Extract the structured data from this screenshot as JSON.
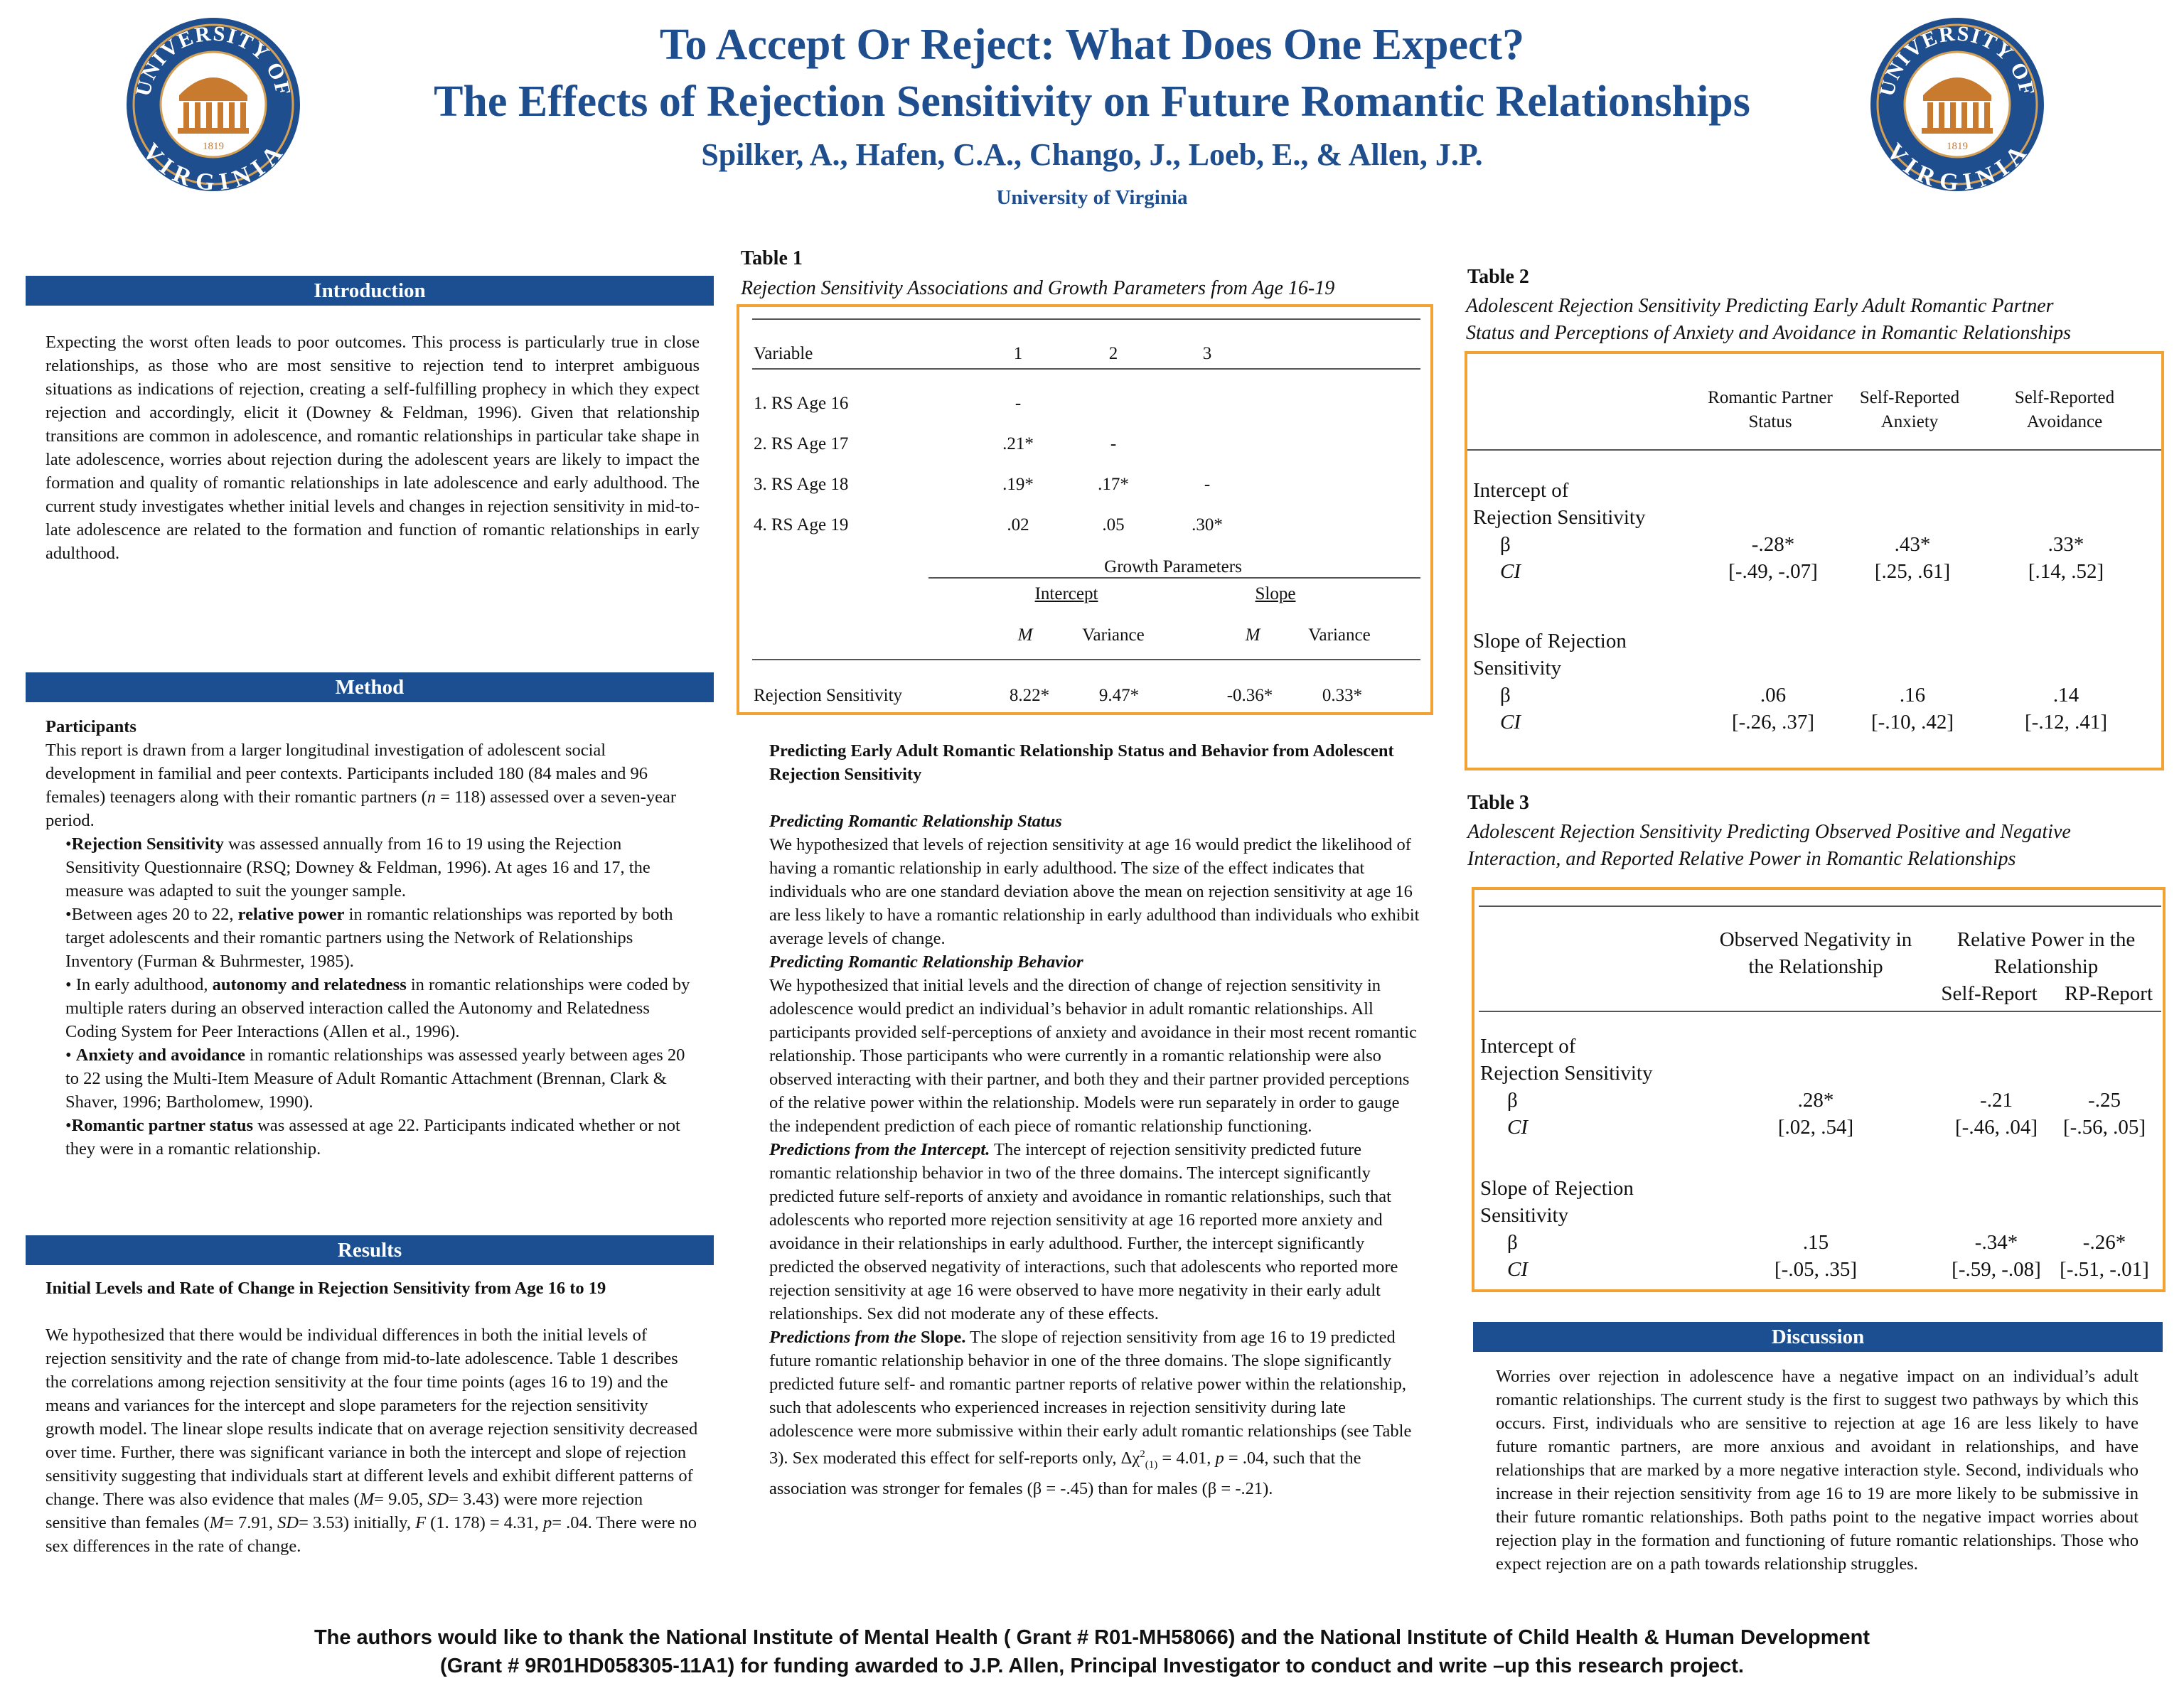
{
  "header": {
    "title_line1": "To Accept Or Reject: What Does One Expect?",
    "title_line2": "The Effects of Rejection Sensitivity on Future Romantic Relationships",
    "authors": "Spilker, A., Hafen, C.A., Chango, J., Loeb, E., & Allen, J.P.",
    "affiliation": "University of Virginia",
    "logo": {
      "top_text": "UNIVERSITY OF",
      "bottom_text": "VIRGINIA",
      "year": "1819",
      "colors": {
        "ring": "#1f4e8f",
        "accent": "#c87a2e"
      }
    }
  },
  "intro": {
    "heading": "Introduction",
    "text": "Expecting the worst often leads to poor outcomes.  This process is particularly true in close relationships, as those who are most sensitive to rejection tend to interpret ambiguous situations as indications of rejection, creating a self-fulfilling prophecy in which they expect rejection and accordingly, elicit it (Downey & Feldman, 1996).  Given that relationship transitions are common in adolescence, and romantic relationships in particular take shape in late adolescence, worries about rejection during the adolescent years are likely to impact the formation and quality of romantic relationships in late adolescence and early adulthood.   The current study investigates whether initial levels and changes in rejection sensitivity in mid-to-late adolescence are related to the formation and function of romantic relationships in early adulthood."
  },
  "method": {
    "heading": "Method",
    "participants_heading": "Participants",
    "participants_pre": "This report is drawn from a larger longitudinal investigation of adolescent social development in familial and peer contexts.  Participants included 180 (84 males and 96 females) teenagers along with their romantic partners (",
    "participants_n": "n",
    "participants_post": " = 118) assessed over a seven-year period.",
    "bullets": [
      {
        "pre": "•",
        "bold": "Rejection Sensitivity",
        "post": " was assessed annually from 16 to 19 using the Rejection Sensitivity Questionnaire (RSQ; Downey & Feldman, 1996). At ages 16 and 17, the measure was adapted to suit the younger sample."
      },
      {
        "pre": "•Between ages 20 to 22, ",
        "bold": "relative power",
        "post": " in romantic relationships was reported by both target adolescents and their romantic partners using the Network of Relationships Inventory (Furman & Buhrmester, 1985)."
      },
      {
        "pre": "• In early adulthood, ",
        "bold": "autonomy and relatedness",
        "post": " in romantic relationships were coded by multiple raters during an observed interaction called the Autonomy and Relatedness Coding System for Peer Interactions (Allen et al., 1996)."
      },
      {
        "pre": "• ",
        "bold": "Anxiety and avoidance",
        "post": " in romantic relationships was assessed yearly between ages 20 to 22 using the Multi-Item Measure of Adult Romantic Attachment (Brennan, Clark & Shaver, 1996; Bartholomew, 1990)."
      },
      {
        "pre": "•",
        "bold": "Romantic partner status",
        "post": " was assessed at age 22. Participants indicated whether or not they were in a romantic relationship."
      }
    ]
  },
  "results": {
    "heading": "Results",
    "subheading": "Initial Levels and Rate of Change in Rejection Sensitivity from Age 16 to 19",
    "p1": "We hypothesized that there would be individual differences in both the initial levels of rejection sensitivity and the rate of change from mid-to-late adolescence. Table 1 describes the correlations among rejection sensitivity at the four time points (ages 16 to 19) and the means and variances for the intercept and slope parameters for the rejection sensitivity growth model. The linear slope results indicate that on average rejection sensitivity decreased over time. Further, there was significant variance in both the intercept and slope of rejection sensitivity suggesting that individuals start at different levels and exhibit different patterns of change. There was also evidence that males (",
    "m_label": "M",
    "m1": "= 9.05, ",
    "sd_label": "SD",
    "sd1": "= 3.43) were more rejection sensitive than females (",
    "m2": "= 7.91, ",
    "sd2": "= 3.53) initially, ",
    "f_label": "F",
    "f_val": " (1. 178) = 4.31, ",
    "p_label": "p",
    "p_val": "= .04. There were no sex differences in the rate of change."
  },
  "table1": {
    "title": "Table 1",
    "subtitle": "Rejection Sensitivity Associations and Growth Parameters from Age 16-19",
    "col_header": [
      "Variable",
      "1",
      "2",
      "3"
    ],
    "rows": [
      {
        "label": "1. RS Age 16",
        "c1": "-",
        "c2": "",
        "c3": ""
      },
      {
        "label": "2. RS  Age 17",
        "c1": ".21*",
        "c2": "-",
        "c3": ""
      },
      {
        "label": "3. RS Age 18",
        "c1": ".19*",
        "c2": ".17*",
        "c3": "-"
      },
      {
        "label": "4. RS Age 19",
        "c1": ".02",
        "c2": ".05",
        "c3": ".30*"
      }
    ],
    "growth_header": "Growth Parameters",
    "intercept": "Intercept",
    "slope": "Slope",
    "m": "M",
    "variance": "Variance",
    "rs_label": "Rejection Sensitivity",
    "rs_values": [
      "8.22*",
      "9.47*",
      "-0.36*",
      "0.33*"
    ]
  },
  "middle": {
    "heading": "Predicting Early Adult Romantic Relationship Status and Behavior from Adolescent Rejection Sensitivity",
    "status_heading": "Predicting Romantic Relationship Status",
    "status_text": "We hypothesized that levels of rejection sensitivity at age 16 would predict the likelihood of having a romantic relationship in early adulthood. The size of the effect indicates that individuals who are one standard deviation above the mean on rejection sensitivity at age 16 are less likely to have a romantic relationship in early adulthood than individuals who exhibit average levels of change.",
    "behavior_heading": "Predicting Romantic Relationship Behavior",
    "behavior_text": "We hypothesized that initial levels and the direction of change of rejection sensitivity in adolescence would predict an individual’s behavior in adult romantic relationships.  All participants provided self-perceptions of anxiety and avoidance in their most recent romantic relationship.  Those participants who were currently in a romantic relationship were also observed interacting with their partner, and both they and their partner provided perceptions of the relative power within the relationship.  Models were run separately in order to gauge the independent prediction of each piece of romantic relationship functioning.",
    "intercept_heading": "Predictions from the Intercept.",
    "intercept_text": "  The intercept of rejection sensitivity predicted future romantic relationship behavior in two of the three domains.  The intercept significantly predicted future self-reports of anxiety and avoidance in romantic relationships, such that adolescents who reported more rejection sensitivity at age 16 reported more anxiety and avoidance in their relationships in early adulthood.  Further, the intercept significantly predicted the observed negativity of interactions, such that adolescents who reported more rejection sensitivity at age 16 were observed to have more negativity in their early adult relationships.  Sex did not moderate any of these effects.",
    "slope_heading_it": "Predictions from the ",
    "slope_heading_b": "Slope.",
    "slope_text": "  The slope of rejection sensitivity from age 16 to 19 predicted future romantic relationship behavior in one of the three domains.  The slope significantly predicted future self- and romantic partner reports of relative power within the relationship, such that adolescents who experienced increases in rejection sensitivity during late adolescence were more submissive within their early adult romantic relationships (see Table 3).  Sex moderated this effect for self-reports only, Δχ",
    "chi_sup": "2",
    "chi_sub": "(1)",
    "slope_text2": " = 4.01, ",
    "p_label": "p",
    "slope_text3": " = .04, such that the association was stronger for females (β = -.45) than for males (β = -.21)."
  },
  "table2": {
    "title": "Table 2",
    "subtitle_l1": "Adolescent Rejection Sensitivity Predicting Early Adult Romantic Partner",
    "subtitle_l2": "Status and Perceptions of Anxiety and Avoidance in Romantic Relationships",
    "cols": [
      [
        "Romantic Partner",
        "Status"
      ],
      [
        "Self-Reported",
        "Anxiety"
      ],
      [
        "Self-Reported",
        "Avoidance"
      ]
    ],
    "intercept_l1": "Intercept of",
    "intercept_l2": "Rejection Sensitivity",
    "slope_l1": "Slope of Rejection",
    "slope_l2": "Sensitivity",
    "beta": "β",
    "ci": "CI",
    "intercept_beta": [
      "-.28*",
      ".43*",
      ".33*"
    ],
    "intercept_ci": [
      "[-.49, -.07]",
      "[.25, .61]",
      "[.14, .52]"
    ],
    "slope_beta": [
      ".06",
      ".16",
      ".14"
    ],
    "slope_ci": [
      "[-.26, .37]",
      "[-.10, .42]",
      "[-.12, .41]"
    ]
  },
  "table3": {
    "title": "Table 3",
    "subtitle_l1": "Adolescent Rejection Sensitivity Predicting Observed Positive and Negative",
    "subtitle_l2": "Interaction, and Reported Relative Power in Romantic Relationships",
    "col1_l1": "Observed Negativity in",
    "col1_l2": "the Relationship",
    "col2_l1": "Relative Power in the",
    "col2_l2": "Relationship",
    "col2a": "Self-Report",
    "col2b": "RP-Report",
    "intercept_l1": "Intercept of",
    "intercept_l2": "Rejection Sensitivity",
    "slope_l1": "Slope of Rejection",
    "slope_l2": "Sensitivity",
    "beta": "β",
    "ci": "CI",
    "intercept_beta": [
      ".28*",
      "-.21",
      "-.25"
    ],
    "intercept_ci": [
      "[.02, .54]",
      "[-.46, .04]",
      "[-.56, .05]"
    ],
    "slope_beta": [
      ".15",
      "-.34*",
      "-.26*"
    ],
    "slope_ci": [
      "[-.05, .35]",
      "[-.59, -.08]",
      "[-.51, -.01]"
    ]
  },
  "discussion": {
    "heading": "Discussion",
    "text": "Worries over rejection in adolescence have a negative impact on an individual’s adult romantic relationships.  The current study is the first to suggest two pathways by which this occurs.  First, individuals who are sensitive to rejection at age 16 are less likely to have future romantic partners, are more anxious and avoidant in relationships, and have relationships that are marked by a more negative interaction style.  Second, individuals who increase in their rejection sensitivity from age 16 to 19 are more likely to be submissive in their future romantic relationships.  Both paths point to the negative impact worries about rejection play in the formation and functioning of future romantic relationships.  Those who expect rejection are on a path towards relationship struggles."
  },
  "acknowledgment": {
    "line1": "The authors would like to thank the National Institute of Mental Health ( Grant # R01-MH58066) and the National Institute of Child Health & Human Development",
    "line2": "(Grant # 9R01HD058305-11A1) for funding awarded to J.P. Allen, Principal Investigator to conduct and write –up this research project."
  }
}
